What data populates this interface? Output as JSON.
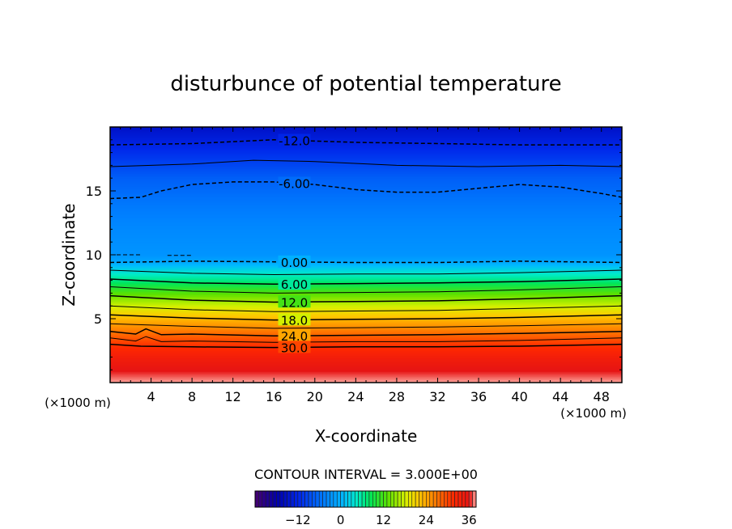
{
  "chart_data": {
    "type": "heatmap",
    "title": "disturbunce of potential temperature",
    "xlabel": "X-coordinate",
    "ylabel": "Z-coordinate",
    "x_unit": "(×1000 m)",
    "y_unit": "(×1000 m)",
    "xlim": [
      0,
      50
    ],
    "ylim": [
      0,
      20
    ],
    "xticks": [
      4,
      8,
      12,
      16,
      20,
      24,
      28,
      32,
      36,
      40,
      44,
      48
    ],
    "yticks": [
      5,
      10,
      15
    ],
    "contour_interval_text": "CONTOUR INTERVAL = 3.000E+00",
    "field_profile": {
      "z": [
        0,
        2,
        3,
        4,
        5,
        6,
        7,
        8,
        9,
        9.5,
        10,
        12,
        14,
        16,
        17,
        18,
        19,
        20
      ],
      "theta": [
        38,
        34,
        31,
        27,
        23,
        18,
        13,
        7,
        2,
        -1,
        -2.5,
        -3.5,
        -5,
        -7,
        -9,
        -11,
        -13,
        -15
      ]
    },
    "contour_levels": [
      -12,
      -9,
      -6,
      -3,
      0,
      3,
      6,
      9,
      12,
      15,
      18,
      21,
      24,
      27,
      30
    ],
    "contours": [
      {
        "level": -12,
        "label": "-12.0",
        "dashed": true,
        "points": [
          [
            0,
            18.6
          ],
          [
            8,
            18.7
          ],
          [
            16,
            19.0
          ],
          [
            24,
            18.8
          ],
          [
            32,
            18.7
          ],
          [
            40,
            18.6
          ],
          [
            50,
            18.6
          ]
        ]
      },
      {
        "level": -9,
        "label": "",
        "dashed": false,
        "points": [
          [
            0,
            16.9
          ],
          [
            8,
            17.1
          ],
          [
            14,
            17.4
          ],
          [
            20,
            17.3
          ],
          [
            28,
            17.0
          ],
          [
            36,
            16.9
          ],
          [
            44,
            17.0
          ],
          [
            50,
            16.9
          ]
        ]
      },
      {
        "level": -6,
        "label": "-6.00",
        "dashed": true,
        "points": [
          [
            0,
            14.4
          ],
          [
            3,
            14.5
          ],
          [
            5,
            15.0
          ],
          [
            8,
            15.5
          ],
          [
            12,
            15.7
          ],
          [
            16,
            15.7
          ],
          [
            20,
            15.5
          ],
          [
            24,
            15.1
          ],
          [
            28,
            14.9
          ],
          [
            32,
            14.9
          ],
          [
            36,
            15.2
          ],
          [
            40,
            15.5
          ],
          [
            44,
            15.3
          ],
          [
            48,
            14.8
          ],
          [
            50,
            14.5
          ]
        ]
      },
      {
        "level": -3,
        "label": "",
        "dashed": true,
        "fragment": true,
        "points": [
          [
            0,
            10.0
          ],
          [
            3,
            10.0
          ]
        ]
      },
      {
        "level": -3,
        "label": "",
        "dashed": true,
        "fragment": true,
        "points": [
          [
            5.6,
            9.95
          ],
          [
            8,
            9.95
          ]
        ]
      },
      {
        "level": 0,
        "label": "0.00",
        "dashed": true,
        "points": [
          [
            0,
            9.4
          ],
          [
            8,
            9.5
          ],
          [
            16,
            9.45
          ],
          [
            24,
            9.4
          ],
          [
            32,
            9.4
          ],
          [
            40,
            9.5
          ],
          [
            50,
            9.4
          ]
        ]
      },
      {
        "level": 3,
        "label": "",
        "dashed": false,
        "points": [
          [
            0,
            8.8
          ],
          [
            8,
            8.55
          ],
          [
            16,
            8.45
          ],
          [
            24,
            8.5
          ],
          [
            32,
            8.5
          ],
          [
            40,
            8.6
          ],
          [
            50,
            8.8
          ]
        ]
      },
      {
        "level": 6,
        "label": "6.00",
        "dashed": false,
        "points": [
          [
            0,
            8.1
          ],
          [
            8,
            7.8
          ],
          [
            16,
            7.7
          ],
          [
            24,
            7.75
          ],
          [
            32,
            7.8
          ],
          [
            40,
            7.9
          ],
          [
            50,
            8.1
          ]
        ]
      },
      {
        "level": 9,
        "label": "",
        "dashed": false,
        "points": [
          [
            0,
            7.5
          ],
          [
            8,
            7.15
          ],
          [
            16,
            7.0
          ],
          [
            24,
            7.05
          ],
          [
            32,
            7.1
          ],
          [
            40,
            7.25
          ],
          [
            50,
            7.5
          ]
        ]
      },
      {
        "level": 12,
        "label": "12.0",
        "dashed": false,
        "points": [
          [
            0,
            6.8
          ],
          [
            8,
            6.45
          ],
          [
            16,
            6.3
          ],
          [
            24,
            6.35
          ],
          [
            32,
            6.4
          ],
          [
            40,
            6.55
          ],
          [
            50,
            6.8
          ]
        ]
      },
      {
        "level": 15,
        "label": "",
        "dashed": false,
        "points": [
          [
            0,
            6.0
          ],
          [
            8,
            5.7
          ],
          [
            16,
            5.55
          ],
          [
            24,
            5.6
          ],
          [
            32,
            5.65
          ],
          [
            40,
            5.8
          ],
          [
            50,
            6.0
          ]
        ]
      },
      {
        "level": 18,
        "label": "18.0",
        "dashed": false,
        "points": [
          [
            0,
            5.3
          ],
          [
            8,
            5.05
          ],
          [
            16,
            4.9
          ],
          [
            24,
            4.95
          ],
          [
            32,
            5.0
          ],
          [
            40,
            5.1
          ],
          [
            50,
            5.3
          ]
        ]
      },
      {
        "level": 21,
        "label": "",
        "dashed": false,
        "points": [
          [
            0,
            4.6
          ],
          [
            8,
            4.4
          ],
          [
            16,
            4.25
          ],
          [
            24,
            4.3
          ],
          [
            32,
            4.35
          ],
          [
            40,
            4.45
          ],
          [
            50,
            4.6
          ]
        ]
      },
      {
        "level": 24,
        "label": "24.0",
        "dashed": false,
        "points": [
          [
            0,
            4.0
          ],
          [
            2.5,
            3.8
          ],
          [
            3.5,
            4.2
          ],
          [
            5,
            3.75
          ],
          [
            8,
            3.8
          ],
          [
            16,
            3.65
          ],
          [
            24,
            3.7
          ],
          [
            32,
            3.75
          ],
          [
            40,
            3.85
          ],
          [
            50,
            4.0
          ]
        ]
      },
      {
        "level": 27,
        "label": "",
        "dashed": false,
        "points": [
          [
            0,
            3.5
          ],
          [
            2.5,
            3.25
          ],
          [
            3.5,
            3.6
          ],
          [
            5,
            3.2
          ],
          [
            8,
            3.25
          ],
          [
            16,
            3.15
          ],
          [
            24,
            3.2
          ],
          [
            32,
            3.2
          ],
          [
            40,
            3.3
          ],
          [
            50,
            3.5
          ]
        ]
      },
      {
        "level": 30,
        "label": "30.0",
        "dashed": false,
        "points": [
          [
            0,
            3.0
          ],
          [
            3,
            2.85
          ],
          [
            8,
            2.8
          ],
          [
            16,
            2.75
          ],
          [
            24,
            2.8
          ],
          [
            32,
            2.8
          ],
          [
            40,
            2.85
          ],
          [
            50,
            3.0
          ]
        ]
      }
    ],
    "colorbar": {
      "ticks": [
        -12,
        0,
        12,
        24,
        36
      ],
      "range": [
        -24,
        38
      ]
    }
  }
}
